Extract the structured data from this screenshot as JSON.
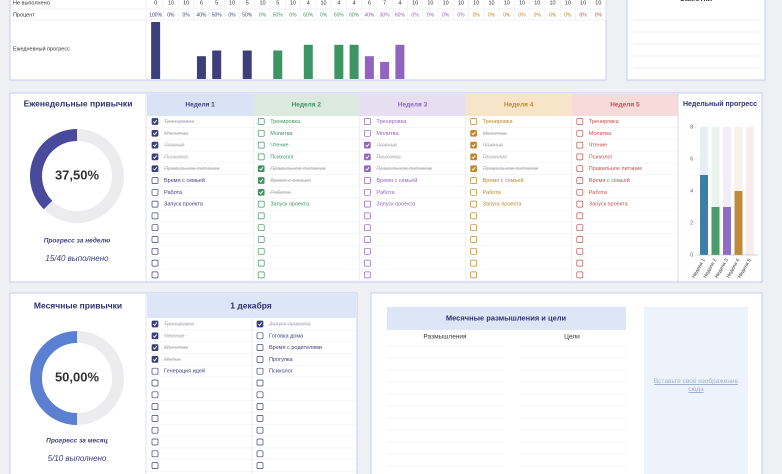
{
  "daily": {
    "not_done_label": "Не выполнено",
    "percent_label": "Процент",
    "progress_label": "Ежедневный прогресс",
    "not_done": [
      0,
      10,
      10,
      6,
      5,
      10,
      5,
      10,
      5,
      10,
      4,
      10,
      4,
      4,
      6,
      7,
      4,
      10,
      10,
      10,
      10,
      10,
      10,
      10,
      10,
      10,
      10,
      10,
      10,
      10
    ],
    "percent": [
      100,
      0,
      0,
      40,
      50,
      0,
      50,
      0,
      50,
      0,
      60,
      0,
      60,
      60,
      40,
      30,
      60,
      0,
      0,
      0,
      0,
      0,
      0,
      0,
      0,
      0,
      0,
      0,
      0,
      0
    ],
    "percent_labels": [
      "100%",
      "0%",
      "0%",
      "40%",
      "50%",
      "0%",
      "50%",
      "0%",
      "50%",
      "0%",
      "60%",
      "0%",
      "60%",
      "60%",
      "40%",
      "30%",
      "60%",
      "0%",
      "0%",
      "0%",
      "0%",
      "0%",
      "0%",
      "0%",
      "0%",
      "0%",
      "0%",
      "0%",
      "0%",
      "0%"
    ]
  },
  "notes": {
    "title": "Заметки"
  },
  "weekly": {
    "title": "Еженедельные привычки",
    "progress": 37.5,
    "progress_label": "37,50%",
    "caption": "Прогресс за неделю",
    "summary": "15/40 выполнено",
    "color": "#4a4a9c",
    "weeks": [
      {
        "name": "Неделя 1",
        "color": "#3b3f7a",
        "header": "#d8e4f6",
        "habits": [
          {
            "name": "Тренировка",
            "done": true
          },
          {
            "name": "Молитва",
            "done": true
          },
          {
            "name": "Чтение",
            "done": true
          },
          {
            "name": "Психолог",
            "done": true
          },
          {
            "name": "Правильное питание",
            "done": true
          },
          {
            "name": "Время с семьей",
            "done": false
          },
          {
            "name": "Работа",
            "done": false
          },
          {
            "name": "Запуск проекта",
            "done": false
          }
        ]
      },
      {
        "name": "Неделя 2",
        "color": "#3f9463",
        "header": "#dbe9de",
        "habits": [
          {
            "name": "Тренировка",
            "done": false
          },
          {
            "name": "Молитва",
            "done": false
          },
          {
            "name": "Чтение",
            "done": false
          },
          {
            "name": "Психолог",
            "done": false
          },
          {
            "name": "Правильное питание",
            "done": true
          },
          {
            "name": "Время с семьей",
            "done": true
          },
          {
            "name": "Работа",
            "done": true
          },
          {
            "name": "Запуск проекта",
            "done": false
          }
        ]
      },
      {
        "name": "Неделя 3",
        "color": "#9064bf",
        "header": "#e7def2",
        "habits": [
          {
            "name": "Тренировка",
            "done": false
          },
          {
            "name": "Молитва",
            "done": false
          },
          {
            "name": "Чтение",
            "done": true
          },
          {
            "name": "Психолог",
            "done": true
          },
          {
            "name": "Правильное питание",
            "done": true
          },
          {
            "name": "Время с семьей",
            "done": false
          },
          {
            "name": "Работа",
            "done": false
          },
          {
            "name": "Запуск проекта",
            "done": false
          }
        ]
      },
      {
        "name": "Неделя 4",
        "color": "#bd8629",
        "header": "#f8e5c9",
        "habits": [
          {
            "name": "Тренировка",
            "done": false
          },
          {
            "name": "Молитва",
            "done": true
          },
          {
            "name": "Чтение",
            "done": true
          },
          {
            "name": "Психолог",
            "done": true
          },
          {
            "name": "Правильное питание",
            "done": true
          },
          {
            "name": "Время с семьей",
            "done": false
          },
          {
            "name": "Работа",
            "done": false
          },
          {
            "name": "Запуск проекта",
            "done": false
          }
        ]
      },
      {
        "name": "Неделя 5",
        "color": "#c4504f",
        "header": "#f7dada",
        "habits": [
          {
            "name": "Тренировка",
            "done": false
          },
          {
            "name": "Молитва",
            "done": false
          },
          {
            "name": "Чтение",
            "done": false
          },
          {
            "name": "Психолог",
            "done": false
          },
          {
            "name": "Правильное питание",
            "done": false
          },
          {
            "name": "Время с семьей",
            "done": false
          },
          {
            "name": "Работа",
            "done": false
          },
          {
            "name": "Запуск проекта",
            "done": false
          }
        ]
      }
    ],
    "chart": {
      "title": "Недельный прогресс",
      "values": [
        5,
        3,
        3,
        4,
        0
      ],
      "colors": [
        "#3d7ea6",
        "#4a9a6a",
        "#8e6cc2",
        "#c08a3a",
        "#d06060"
      ],
      "ylim": [
        0,
        8
      ],
      "yticks": [
        0,
        2,
        4,
        6,
        8
      ]
    }
  },
  "monthly": {
    "title": "Месячные привычки",
    "progress": 50,
    "progress_label": "50,00%",
    "caption": "Прогресс за месяц",
    "summary": "5/10 выполнено",
    "color": "#5b80d2",
    "date": "1 декабря",
    "columns": [
      [
        {
          "name": "Тренировка",
          "done": true
        },
        {
          "name": "Чтение",
          "done": true
        },
        {
          "name": "Молитва",
          "done": true
        },
        {
          "name": "Медиа",
          "done": true
        },
        {
          "name": "Генерация идей",
          "done": false
        }
      ],
      [
        {
          "name": "Запуск проекта",
          "done": true
        },
        {
          "name": "Готовка дома",
          "done": false
        },
        {
          "name": "Время с родителями",
          "done": false
        },
        {
          "name": "Прогулка",
          "done": false
        },
        {
          "name": "Психолог",
          "done": false
        }
      ]
    ]
  },
  "reflections": {
    "title": "Месячные размышления и цели",
    "columns": [
      "Размышления",
      "Цели"
    ],
    "image_hint": "Вставьте своё изображение сюда"
  }
}
